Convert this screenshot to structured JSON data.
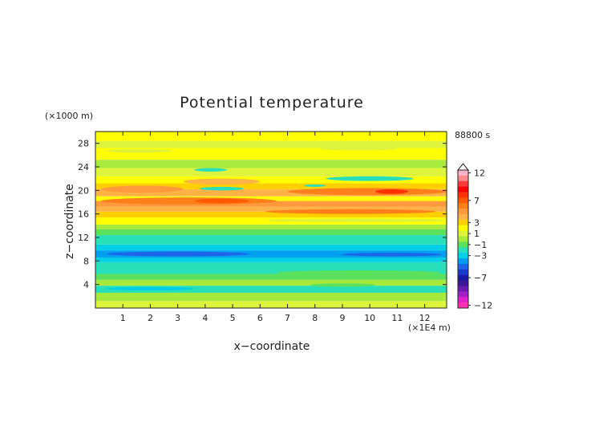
{
  "chart_data": {
    "type": "heatmap",
    "title": "Potential temperature",
    "xlabel": "x−coordinate",
    "ylabel": "z−coordinate",
    "x_unit": "(×1E4 m)",
    "y_unit": "(×1000 m)",
    "time_label": "88800 s",
    "xlim": [
      0,
      12.8
    ],
    "ylim": [
      0,
      30
    ],
    "x_ticks": [
      1,
      2,
      3,
      4,
      5,
      6,
      7,
      8,
      9,
      10,
      11,
      12
    ],
    "x_tick_labels": [
      "1",
      "2",
      "3",
      "4",
      "5",
      "6",
      "7",
      "8",
      "9",
      "10",
      "11",
      "12"
    ],
    "y_ticks": [
      4,
      8,
      12,
      16,
      20,
      24,
      28
    ],
    "y_tick_labels": [
      "4",
      "8",
      "12",
      "16",
      "20",
      "24",
      "28"
    ],
    "levels": [
      12,
      11,
      10,
      9,
      8,
      7,
      6,
      5,
      4,
      3,
      2,
      1,
      0,
      -1,
      -2,
      -3,
      -4,
      -5,
      -6,
      -7,
      -8,
      -9,
      -10,
      -11,
      -12
    ],
    "level_colors": [
      "#ffb3c6",
      "#ff8a8a",
      "#ff3a3a",
      "#ff0000",
      "#ff3300",
      "#ff5a00",
      "#ff7f1a",
      "#ff9a3c",
      "#ffb347",
      "#ffd000",
      "#ffff00",
      "#ddf33c",
      "#a8ea3c",
      "#5ce15c",
      "#27dfb8",
      "#00cfe6",
      "#009ff0",
      "#1e64ea",
      "#1a3ccd",
      "#1a1aa6",
      "#3a1896",
      "#6a1ab0",
      "#a022c4",
      "#e020c8",
      "#ff30b0"
    ],
    "colorbar_labels": [
      {
        "level": 12,
        "text": "12"
      },
      {
        "level": 7,
        "text": "7"
      },
      {
        "level": 3,
        "text": "3"
      },
      {
        "level": 1,
        "text": "1"
      },
      {
        "level": -1,
        "text": "−1"
      },
      {
        "level": -3,
        "text": "−3"
      },
      {
        "level": -7,
        "text": "−7"
      },
      {
        "level": -12,
        "text": "−12"
      }
    ],
    "bands": [
      {
        "z_bottom": 0.0,
        "z_top": 1.2,
        "value": 1
      },
      {
        "z_bottom": 1.2,
        "z_top": 2.6,
        "value": 0
      },
      {
        "z_bottom": 2.6,
        "z_top": 3.8,
        "value": -2
      },
      {
        "z_bottom": 3.8,
        "z_top": 4.8,
        "value": 0
      },
      {
        "z_bottom": 4.8,
        "z_top": 5.8,
        "value": -1
      },
      {
        "z_bottom": 5.8,
        "z_top": 7.8,
        "value": -2
      },
      {
        "z_bottom": 7.8,
        "z_top": 8.6,
        "value": -3
      },
      {
        "z_bottom": 8.6,
        "z_top": 9.8,
        "value": -4
      },
      {
        "z_bottom": 9.8,
        "z_top": 10.8,
        "value": -3
      },
      {
        "z_bottom": 10.8,
        "z_top": 12.4,
        "value": -2
      },
      {
        "z_bottom": 12.4,
        "z_top": 13.4,
        "value": -1
      },
      {
        "z_bottom": 13.4,
        "z_top": 14.2,
        "value": 0
      },
      {
        "z_bottom": 14.2,
        "z_top": 15.4,
        "value": 2
      },
      {
        "z_bottom": 15.4,
        "z_top": 16.4,
        "value": 3
      },
      {
        "z_bottom": 16.4,
        "z_top": 17.2,
        "value": 4
      },
      {
        "z_bottom": 17.2,
        "z_top": 18.2,
        "value": 5
      },
      {
        "z_bottom": 18.2,
        "z_top": 19.0,
        "value": 2
      },
      {
        "z_bottom": 19.0,
        "z_top": 20.2,
        "value": 4
      },
      {
        "z_bottom": 20.2,
        "z_top": 21.2,
        "value": 3
      },
      {
        "z_bottom": 21.2,
        "z_top": 22.4,
        "value": 2
      },
      {
        "z_bottom": 22.4,
        "z_top": 23.8,
        "value": 1
      },
      {
        "z_bottom": 23.8,
        "z_top": 25.2,
        "value": 0
      },
      {
        "z_bottom": 25.2,
        "z_top": 27.2,
        "value": 2
      },
      {
        "z_bottom": 27.2,
        "z_top": 28.4,
        "value": 1
      },
      {
        "z_bottom": 28.4,
        "z_top": 30.0,
        "value": 2
      }
    ],
    "features": [
      {
        "x0": 0.2,
        "x1": 3.2,
        "z0": 19.6,
        "z1": 20.8,
        "value": 5
      },
      {
        "x0": 3.2,
        "x1": 6.0,
        "z0": 21.0,
        "z1": 22.0,
        "value": 4
      },
      {
        "x0": 7.0,
        "x1": 12.8,
        "z0": 19.2,
        "z1": 20.4,
        "value": 6
      },
      {
        "x0": 10.2,
        "x1": 11.4,
        "z0": 19.4,
        "z1": 20.2,
        "value": 8
      },
      {
        "x0": 0.2,
        "x1": 6.6,
        "z0": 17.6,
        "z1": 18.8,
        "value": 6
      },
      {
        "x0": 3.6,
        "x1": 5.6,
        "z0": 17.8,
        "z1": 18.6,
        "value": 7
      },
      {
        "x0": 8.4,
        "x1": 11.6,
        "z0": 21.6,
        "z1": 22.4,
        "value": -2
      },
      {
        "x0": 3.6,
        "x1": 4.8,
        "z0": 23.2,
        "z1": 23.8,
        "value": -2
      },
      {
        "x0": 3.8,
        "x1": 5.4,
        "z0": 20.0,
        "z1": 20.6,
        "value": -2
      },
      {
        "x0": 7.6,
        "x1": 8.4,
        "z0": 20.6,
        "z1": 21.0,
        "value": -2
      },
      {
        "x0": 6.2,
        "x1": 12.4,
        "z0": 16.0,
        "z1": 16.8,
        "value": 6
      },
      {
        "x0": 6.2,
        "x1": 12.8,
        "z0": 14.6,
        "z1": 15.2,
        "value": 1
      },
      {
        "x0": 0.4,
        "x1": 5.6,
        "z0": 8.8,
        "z1": 9.6,
        "value": -5
      },
      {
        "x0": 9.0,
        "x1": 12.6,
        "z0": 8.8,
        "z1": 9.4,
        "value": -5
      },
      {
        "x0": 6.6,
        "x1": 12.6,
        "z0": 5.6,
        "z1": 6.4,
        "value": -1
      },
      {
        "x0": 0.4,
        "x1": 3.6,
        "z0": 3.0,
        "z1": 3.6,
        "value": -3
      },
      {
        "x0": 7.8,
        "x1": 10.2,
        "z0": 3.6,
        "z1": 4.2,
        "value": -1
      },
      {
        "x0": 0.4,
        "x1": 2.8,
        "z0": 26.4,
        "z1": 27.0,
        "value": 1
      },
      {
        "x0": 8.2,
        "x1": 11.0,
        "z0": 26.8,
        "z1": 27.4,
        "value": 1
      }
    ]
  }
}
